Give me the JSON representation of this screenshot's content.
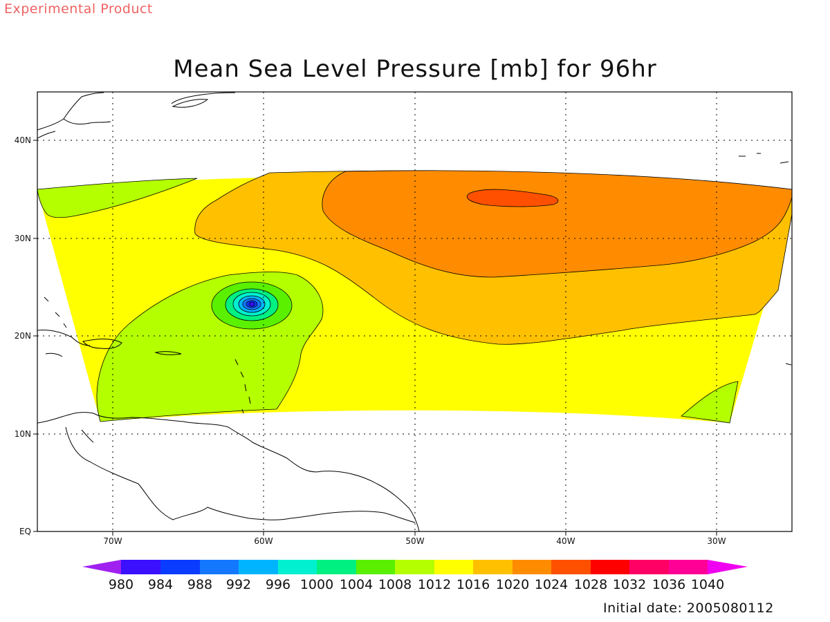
{
  "header": {
    "watermark": "Experimental Product",
    "title": "Mean Sea Level Pressure [mb] for 96hr"
  },
  "map": {
    "lon_range": [
      -75,
      -25
    ],
    "lat_range": [
      0,
      45
    ],
    "lon_ticks": [
      "70W",
      "60W",
      "50W",
      "40W",
      "30W"
    ],
    "lat_ticks": [
      "EQ",
      "10N",
      "20N",
      "30N",
      "40N"
    ],
    "grid": "dotted"
  },
  "colorbar": {
    "levels": [
      "980",
      "984",
      "988",
      "992",
      "996",
      "1000",
      "1004",
      "1008",
      "1012",
      "1016",
      "1020",
      "1024",
      "1028",
      "1032",
      "1036",
      "1040"
    ],
    "colors": [
      "#a020f0",
      "#3a10ff",
      "#0a3cff",
      "#1478ff",
      "#00b4ff",
      "#00f0d0",
      "#00f082",
      "#5af000",
      "#b4ff00",
      "#ffff00",
      "#ffc000",
      "#ff8c00",
      "#ff5000",
      "#ff0000",
      "#ff0064",
      "#ff0096",
      "#f000f0"
    ]
  },
  "footer": {
    "initial_date": "Initial date: 2005080112"
  }
}
